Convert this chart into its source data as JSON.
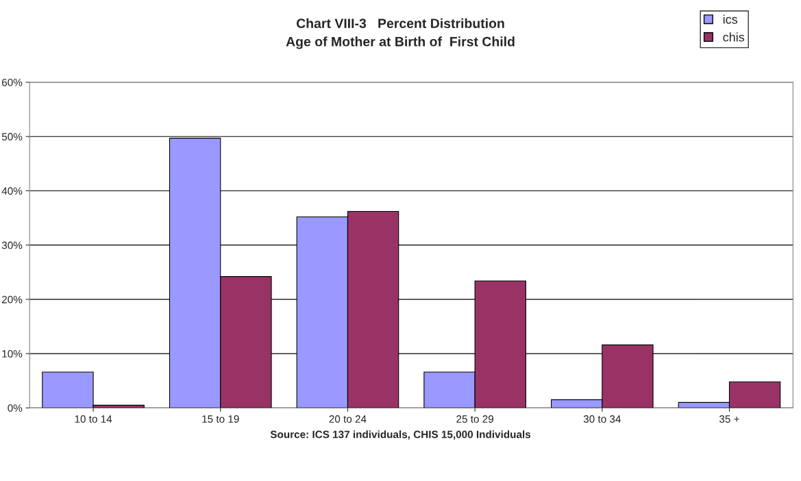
{
  "chart_data": {
    "type": "bar",
    "title": "Chart VIII-3   Percent Distribution\nAge of Mother at Birth of  First Child",
    "categories": [
      "10 to 14",
      "15 to 19",
      "20 to 24",
      "25 to 29",
      "30 to 34",
      "35 +"
    ],
    "series": [
      {
        "name": "ics",
        "color": "#9999ff",
        "values": [
          6.6,
          49.7,
          35.2,
          6.6,
          1.5,
          1.0
        ]
      },
      {
        "name": "chis",
        "color": "#993366",
        "values": [
          0.5,
          24.2,
          36.2,
          23.4,
          11.6,
          4.8
        ]
      }
    ],
    "ylim": [
      0,
      60
    ],
    "yticks": [
      {
        "value": 0,
        "label": "0%"
      },
      {
        "value": 10,
        "label": "10%"
      },
      {
        "value": 20,
        "label": "20%"
      },
      {
        "value": 30,
        "label": "30%"
      },
      {
        "value": 40,
        "label": "40%"
      },
      {
        "value": 50,
        "label": "50%"
      },
      {
        "value": 60,
        "label": "60%"
      }
    ],
    "grid": "y",
    "legend": "top right",
    "annotations": [
      "Source: ICS 137 individuals, CHIS 15,000 Individuals"
    ]
  }
}
